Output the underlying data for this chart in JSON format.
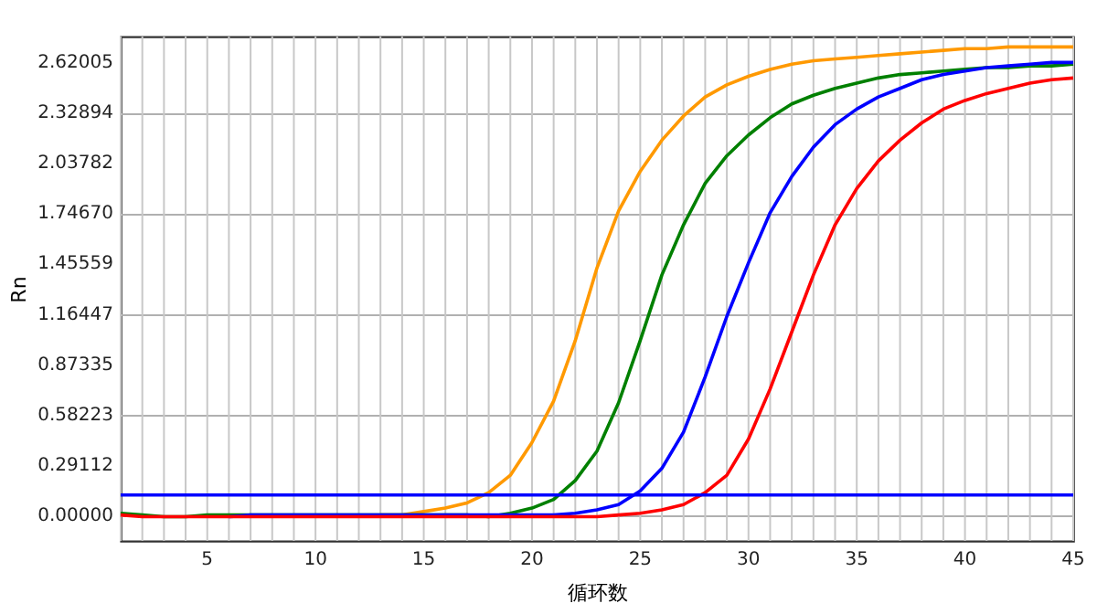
{
  "chart_data": {
    "type": "line",
    "xlabel": "循环数",
    "ylabel": "Rn",
    "x": [
      1,
      2,
      3,
      4,
      5,
      6,
      7,
      8,
      9,
      10,
      11,
      12,
      13,
      14,
      15,
      16,
      17,
      18,
      19,
      20,
      21,
      22,
      23,
      24,
      25,
      26,
      27,
      28,
      29,
      30,
      31,
      32,
      33,
      34,
      35,
      36,
      37,
      38,
      39,
      40,
      41,
      42,
      43,
      44,
      45
    ],
    "series": [
      {
        "color": "#ff9900",
        "values": [
          null,
          null,
          null,
          null,
          null,
          null,
          null,
          null,
          null,
          null,
          null,
          null,
          0,
          0,
          0.02,
          0.04,
          0.07,
          0.13,
          0.23,
          0.42,
          0.66,
          1.01,
          1.43,
          1.76,
          1.99,
          2.17,
          2.31,
          2.42,
          2.49,
          2.54,
          2.58,
          2.61,
          2.63,
          2.64,
          2.65,
          2.66,
          2.67,
          2.68,
          2.69,
          2.7,
          2.7,
          2.71,
          2.71,
          2.71,
          2.71
        ]
      },
      {
        "color": "#008000",
        "values": [
          0.01,
          0,
          -0.01,
          -0.01,
          0,
          0,
          0,
          0,
          0,
          0,
          0,
          0,
          0,
          0,
          0,
          0,
          0,
          -0.01,
          0.01,
          0.04,
          0.09,
          0.2,
          0.37,
          0.65,
          1.01,
          1.39,
          1.68,
          1.92,
          2.08,
          2.2,
          2.3,
          2.38,
          2.43,
          2.47,
          2.5,
          2.53,
          2.55,
          2.56,
          2.57,
          2.58,
          2.59,
          2.59,
          2.6,
          2.6,
          2.61
        ]
      },
      {
        "color": "#0000ff",
        "values": [
          null,
          null,
          null,
          null,
          null,
          -0.01,
          0,
          0,
          0,
          0,
          0,
          0,
          0,
          0,
          0,
          0,
          0,
          0,
          0,
          0,
          0,
          0.01,
          0.03,
          0.06,
          0.14,
          0.27,
          0.48,
          0.8,
          1.15,
          1.46,
          1.75,
          1.96,
          2.13,
          2.26,
          2.35,
          2.42,
          2.47,
          2.52,
          2.55,
          2.57,
          2.59,
          2.6,
          2.61,
          2.62,
          2.62
        ]
      },
      {
        "color": "#ff0000",
        "values": [
          0,
          -0.01,
          -0.01,
          -0.01,
          -0.01,
          -0.01,
          -0.01,
          -0.01,
          -0.01,
          -0.01,
          -0.01,
          -0.01,
          -0.01,
          -0.01,
          -0.01,
          -0.01,
          -0.01,
          -0.01,
          -0.01,
          -0.01,
          -0.01,
          -0.01,
          -0.01,
          0,
          0.01,
          0.03,
          0.06,
          0.13,
          0.23,
          0.44,
          0.73,
          1.06,
          1.39,
          1.68,
          1.89,
          2.05,
          2.17,
          2.27,
          2.35,
          2.4,
          2.44,
          2.47,
          2.5,
          2.52,
          2.53
        ]
      }
    ],
    "ref_lines": [
      {
        "axis": "y",
        "value": 0.116,
        "color": "#0000ff"
      }
    ],
    "xlim": [
      1,
      45
    ],
    "xticks": [
      {
        "value": 1,
        "label": null
      },
      {
        "value": 2,
        "label": null
      },
      {
        "value": 3,
        "label": null
      },
      {
        "value": 4,
        "label": null
      },
      5,
      {
        "value": 6,
        "label": null
      },
      {
        "value": 7,
        "label": null
      },
      {
        "value": 8,
        "label": null
      },
      {
        "value": 9,
        "label": null
      },
      10,
      {
        "value": 11,
        "label": null
      },
      {
        "value": 12,
        "label": null
      },
      {
        "value": 13,
        "label": null
      },
      {
        "value": 14,
        "label": null
      },
      15,
      {
        "value": 16,
        "label": null
      },
      {
        "value": 17,
        "label": null
      },
      {
        "value": 18,
        "label": null
      },
      {
        "value": 19,
        "label": null
      },
      20,
      {
        "value": 21,
        "label": null
      },
      {
        "value": 22,
        "label": null
      },
      {
        "value": 23,
        "label": null
      },
      {
        "value": 24,
        "label": null
      },
      25,
      {
        "value": 26,
        "label": null
      },
      {
        "value": 27,
        "label": null
      },
      {
        "value": 28,
        "label": null
      },
      {
        "value": 29,
        "label": null
      },
      30,
      {
        "value": 31,
        "label": null
      },
      {
        "value": 32,
        "label": null
      },
      {
        "value": 33,
        "label": null
      },
      {
        "value": 34,
        "label": null
      },
      35,
      {
        "value": 36,
        "label": null
      },
      {
        "value": 37,
        "label": null
      },
      {
        "value": 38,
        "label": null
      },
      {
        "value": 39,
        "label": null
      },
      40,
      {
        "value": 41,
        "label": null
      },
      {
        "value": 42,
        "label": null
      },
      {
        "value": 43,
        "label": null
      },
      {
        "value": 44,
        "label": null
      },
      45
    ],
    "ylim": [
      -0.15,
      2.77
    ],
    "yticks": [
      {
        "value": 0,
        "label": "0.00000"
      },
      0.29112,
      0.58223,
      0.87335,
      1.16447,
      1.45559,
      {
        "value": 1.7467,
        "label": "1.74670"
      },
      2.03782,
      2.32894,
      2.62005
    ],
    "grid": true,
    "legend": false,
    "marker": "none",
    "line_style": "solid"
  }
}
